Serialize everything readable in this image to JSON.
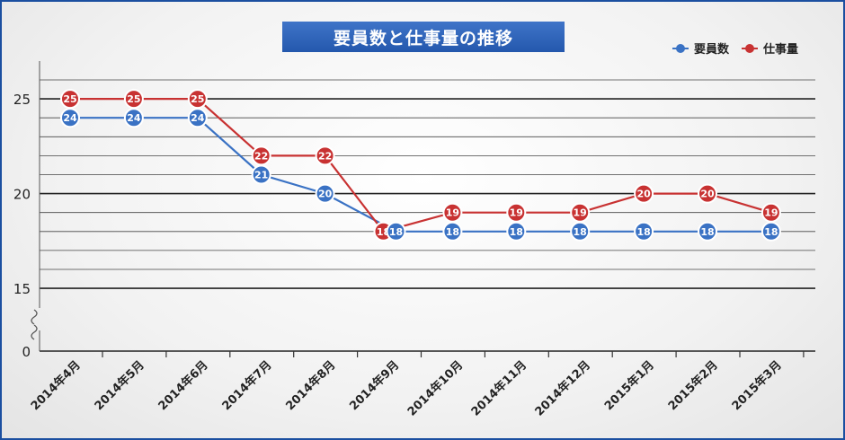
{
  "chart_data": {
    "type": "line",
    "title": "要員数と仕事量の推移",
    "categories": [
      "2014年4月",
      "2014年5月",
      "2014年6月",
      "2014年7月",
      "2014年8月",
      "2014年9月",
      "2014年10月",
      "2014年11月",
      "2014年12月",
      "2015年1月",
      "2015年2月",
      "2015年3月"
    ],
    "series": [
      {
        "name": "要員数",
        "color": "#3a72c4",
        "values": [
          24,
          24,
          24,
          21,
          20,
          18,
          18,
          18,
          18,
          18,
          18,
          18
        ]
      },
      {
        "name": "仕事量",
        "color": "#c83232",
        "values": [
          25,
          25,
          25,
          22,
          22,
          18,
          19,
          19,
          19,
          20,
          20,
          19
        ]
      }
    ],
    "y_ticks": [
      "25",
      "20",
      "15",
      "0"
    ],
    "ylim": [
      15,
      26
    ],
    "axis_break": true,
    "legend_position": "top-right",
    "grid": true
  }
}
